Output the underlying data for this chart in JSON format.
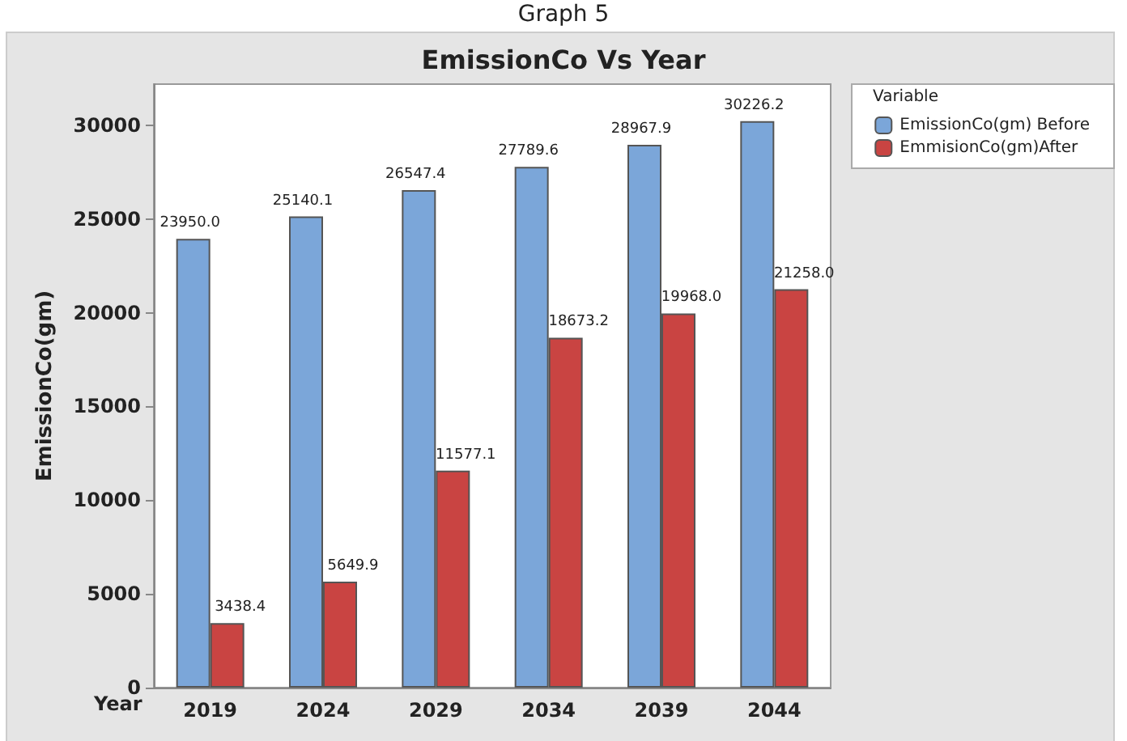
{
  "chart_data": {
    "type": "bar",
    "title": "EmissionCo Vs Year",
    "annotations": [
      "Graph 5"
    ],
    "xlabel": "Year",
    "ylabel": "EmissionCo(gm)",
    "legend_title": "Variable",
    "categories": [
      "2019",
      "2024",
      "2029",
      "2034",
      "2039",
      "2044"
    ],
    "series": [
      {
        "name": "EmissionCo(gm) Before",
        "color": "#7ba6d9",
        "values": [
          23950.0,
          25140.1,
          26547.4,
          27789.6,
          28967.9,
          30226.2
        ],
        "value_labels": [
          "23950.0",
          "25140.1",
          "26547.4",
          "27789.6",
          "28967.9",
          "30226.2"
        ]
      },
      {
        "name": "EmmisionCo(gm)After",
        "color": "#c94442",
        "values": [
          3438.4,
          5649.9,
          11577.1,
          18673.2,
          19968.0,
          21258.0
        ],
        "value_labels": [
          "3438.4",
          "5649.9",
          "11577.1",
          "18673.2",
          "19968.0",
          "21258.0"
        ]
      }
    ],
    "ylim": [
      0,
      32200
    ],
    "yticks": [
      0,
      5000,
      10000,
      15000,
      20000,
      25000,
      30000
    ],
    "grid": false,
    "legend": "top right"
  }
}
